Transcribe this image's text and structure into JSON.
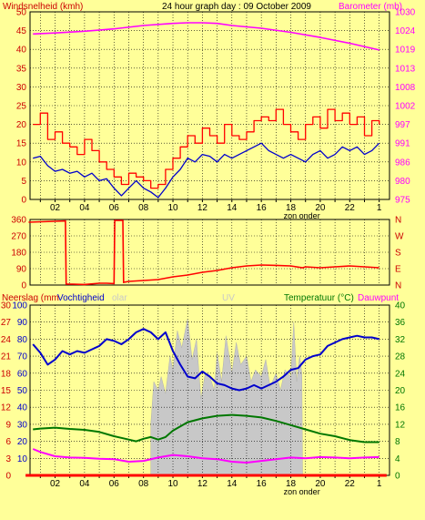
{
  "page": {
    "background": "#ffff99",
    "plot_background": "#ffff99"
  },
  "chart_data": [
    {
      "id": "wind_baro",
      "type": "line",
      "title": "24 hour graph day : 09 October 2009",
      "left_axis_label": "Windsnelheid (kmh)",
      "right_axis_label": "Barometer (mb)",
      "x_ticks": [
        "02",
        "04",
        "06",
        "08",
        "10",
        "12",
        "14",
        "16",
        "18",
        "20",
        "22"
      ],
      "x_end_tick": "1",
      "x_annotation": "zon onder",
      "left_ticks": [
        "0",
        "5",
        "10",
        "15",
        "20",
        "25",
        "30",
        "35",
        "40",
        "45",
        "50"
      ],
      "right_ticks": [
        "975",
        "980",
        "986",
        "991",
        "997",
        "1002",
        "1008",
        "1013",
        "1019",
        "1024",
        "1030"
      ],
      "ylim_left": [
        0,
        50
      ],
      "ylim_right": [
        975,
        1030
      ],
      "series": [
        {
          "axis": "right",
          "color": "#ff00ff",
          "x": [
            0.5,
            2,
            4,
            6,
            8,
            10,
            11,
            12,
            13,
            14,
            16,
            18,
            20,
            22,
            24
          ],
          "y": [
            1023.5,
            1023.8,
            1024.3,
            1025.0,
            1026.0,
            1026.6,
            1026.8,
            1026.8,
            1026.6,
            1026.0,
            1025.2,
            1024.0,
            1022.5,
            1020.8,
            1018.8
          ]
        },
        {
          "axis": "left",
          "color": "#ff0000",
          "step": true,
          "x": [
            0.5,
            1,
            1.5,
            2,
            2.5,
            3,
            3.5,
            4,
            4.5,
            5,
            5.5,
            6,
            6.5,
            7,
            7.5,
            8,
            8.5,
            9,
            9.5,
            10,
            10.5,
            11,
            11.5,
            12,
            12.5,
            13,
            13.5,
            14,
            14.5,
            15,
            15.5,
            16,
            16.5,
            17,
            17.5,
            18,
            18.5,
            19,
            19.5,
            20,
            20.5,
            21,
            21.5,
            22,
            22.5,
            23,
            23.5,
            24
          ],
          "y": [
            20,
            23,
            16,
            18,
            15,
            14,
            12,
            16,
            13,
            10,
            8,
            6,
            4,
            7,
            6,
            5,
            3,
            4,
            8,
            11,
            14,
            17,
            15,
            19,
            17,
            15,
            20,
            17,
            16,
            18,
            21,
            22,
            21,
            24,
            20,
            18,
            16,
            20,
            22,
            19,
            24,
            21,
            23,
            20,
            22,
            17,
            21,
            20
          ]
        },
        {
          "axis": "left",
          "color": "#0000cc",
          "x": [
            0.5,
            1,
            1.5,
            2,
            2.5,
            3,
            3.5,
            4,
            4.5,
            5,
            5.5,
            6,
            6.5,
            7,
            7.5,
            8,
            8.5,
            9,
            9.5,
            10,
            10.5,
            11,
            11.5,
            12,
            12.5,
            13,
            13.5,
            14,
            14.5,
            15,
            15.5,
            16,
            16.5,
            17,
            17.5,
            18,
            18.5,
            19,
            19.5,
            20,
            20.5,
            21,
            21.5,
            22,
            22.5,
            23,
            23.5,
            24
          ],
          "y": [
            11,
            11.5,
            9,
            7.5,
            8,
            7,
            7.5,
            6,
            7,
            5,
            5.5,
            3,
            1,
            3,
            5,
            3,
            2,
            0.5,
            3,
            6,
            8,
            11,
            10,
            12,
            11.5,
            10,
            12,
            11,
            12,
            13,
            14,
            15,
            13,
            12,
            11,
            12,
            11,
            10,
            12,
            13,
            11,
            12,
            14,
            13,
            14,
            12,
            13,
            15
          ]
        }
      ]
    },
    {
      "id": "wind_dir",
      "type": "line",
      "x_ticks": [],
      "left_ticks": [
        "0",
        "90",
        "180",
        "270",
        "360"
      ],
      "right_ticks": [
        "N",
        "E",
        "S",
        "W",
        "N"
      ],
      "ylim_left": [
        0,
        360
      ],
      "series": [
        {
          "axis": "left",
          "color": "#ff0000",
          "x": [
            0.2,
            2.0,
            2.7,
            2.75,
            3.2,
            4.0,
            5.0,
            5.5,
            6.0,
            6.05,
            6.6,
            6.65,
            7.0,
            8,
            9,
            10,
            11,
            12,
            13,
            14,
            15,
            16,
            17,
            18,
            18.8,
            19,
            20,
            21,
            22,
            23,
            24
          ],
          "y": [
            345,
            350,
            352,
            5,
            5,
            3,
            10,
            10,
            8,
            355,
            355,
            15,
            20,
            25,
            30,
            45,
            55,
            70,
            80,
            95,
            105,
            110,
            108,
            105,
            95,
            100,
            95,
            100,
            105,
            100,
            95
          ]
        }
      ]
    },
    {
      "id": "rain_hum_temp_uv",
      "type": "line",
      "labels": {
        "rain": "Neerslag (mm",
        "humidity": "Vochtigheid",
        "solar": "olar",
        "uv": "UV",
        "temperature": "Temperatuur (°C)",
        "dewpoint": "Dauwpunt"
      },
      "x_ticks": [
        "02",
        "04",
        "06",
        "08",
        "10",
        "12",
        "14",
        "16",
        "18",
        "20",
        "22"
      ],
      "x_end_tick": "1",
      "x_annotation": "zon onder",
      "left_ticks_rain": [
        "0",
        "3",
        "6",
        "9",
        "12",
        "15",
        "18",
        "21",
        "24",
        "27",
        "30"
      ],
      "left_ticks_humidity": [
        "10",
        "20",
        "30",
        "40",
        "50",
        "60",
        "70",
        "80",
        "90",
        "100"
      ],
      "right_ticks": [
        "0",
        "4",
        "8",
        "12",
        "16",
        "20",
        "24",
        "28",
        "32",
        "36",
        "40"
      ],
      "ylim_left": [
        0,
        100
      ],
      "ylim_right": [
        0,
        40
      ],
      "solar_shading": {
        "color": "#c8c8c8",
        "x": [
          8.5,
          8.7,
          9.0,
          9.2,
          9.5,
          9.8,
          10.0,
          10.3,
          10.6,
          11.0,
          11.3,
          11.6,
          11.9,
          12.2,
          12.5,
          12.8,
          13.0,
          13.3,
          13.6,
          14.0,
          14.3,
          14.6,
          15.0,
          15.3,
          15.6,
          16.0,
          16.3,
          16.6,
          17.0,
          17.3,
          17.6,
          18.0,
          18.2,
          18.4,
          18.6,
          18.75,
          18.8
        ],
        "y": [
          30,
          55,
          50,
          58,
          48,
          70,
          62,
          85,
          75,
          92,
          68,
          80,
          45,
          60,
          58,
          50,
          72,
          55,
          82,
          60,
          78,
          65,
          70,
          55,
          62,
          58,
          68,
          52,
          60,
          50,
          62,
          58,
          90,
          55,
          70,
          60,
          0
        ]
      },
      "series": [
        {
          "name": "Vochtigheid",
          "axis": "left",
          "color": "#0000cc",
          "x": [
            0.5,
            1,
            1.5,
            2,
            2.5,
            3,
            3.5,
            4,
            4.5,
            5,
            5.5,
            6,
            6.5,
            7,
            7.5,
            8,
            8.5,
            9,
            9.5,
            10,
            10.5,
            11,
            11.5,
            12,
            12.5,
            13,
            13.5,
            14,
            14.5,
            15,
            15.5,
            16,
            16.5,
            17,
            17.5,
            18,
            18.5,
            19,
            19.5,
            20,
            20.5,
            21,
            21.5,
            22,
            22.5,
            23,
            23.5,
            24
          ],
          "y": [
            77,
            72,
            65,
            68,
            73,
            71,
            73,
            72,
            74,
            76,
            80,
            79,
            77,
            80,
            84,
            86,
            84,
            80,
            84,
            73,
            65,
            58,
            57,
            61,
            58,
            54,
            53,
            51,
            50,
            51,
            53,
            51,
            53,
            55,
            58,
            62,
            63,
            68,
            70,
            71,
            76,
            78,
            80,
            81,
            82,
            81,
            81,
            80
          ]
        },
        {
          "name": "Temperatuur (°C)",
          "axis": "right",
          "color": "#007700",
          "x": [
            0.5,
            1,
            2,
            3,
            4,
            5,
            6,
            7,
            7.5,
            8,
            8.5,
            9,
            9.5,
            10,
            11,
            12,
            13,
            14,
            15,
            16,
            17,
            18,
            19,
            20,
            21,
            22,
            23,
            24
          ],
          "y": [
            10.8,
            11,
            11.2,
            10.9,
            10.7,
            10.2,
            9.2,
            8.4,
            8.0,
            8.6,
            9.0,
            8.4,
            9.0,
            10.5,
            12.5,
            13.4,
            14.0,
            14.2,
            14.0,
            13.6,
            12.8,
            11.8,
            10.8,
            9.8,
            9.2,
            8.3,
            7.8,
            7.8
          ]
        },
        {
          "name": "Dauwpunt",
          "axis": "right",
          "color": "#ff00ff",
          "x": [
            0.5,
            1,
            2,
            3,
            4,
            5,
            6,
            7,
            8,
            9,
            10,
            11,
            12,
            13,
            14,
            15,
            16,
            17,
            18,
            19,
            20,
            21,
            22,
            23,
            24
          ],
          "y": [
            6.2,
            5.5,
            4.5,
            4.2,
            4.1,
            3.9,
            3.8,
            3.2,
            3.4,
            4.2,
            4.8,
            4.5,
            4.0,
            3.8,
            3.2,
            3.0,
            3.4,
            3.8,
            4.2,
            4.0,
            4.3,
            4.2,
            4.0,
            4.2,
            4.3
          ]
        },
        {
          "name": "Neerslag (mm",
          "axis": "left",
          "color": "#ff0000",
          "x": [
            0,
            24.5
          ],
          "y": [
            0,
            0
          ]
        }
      ]
    }
  ]
}
